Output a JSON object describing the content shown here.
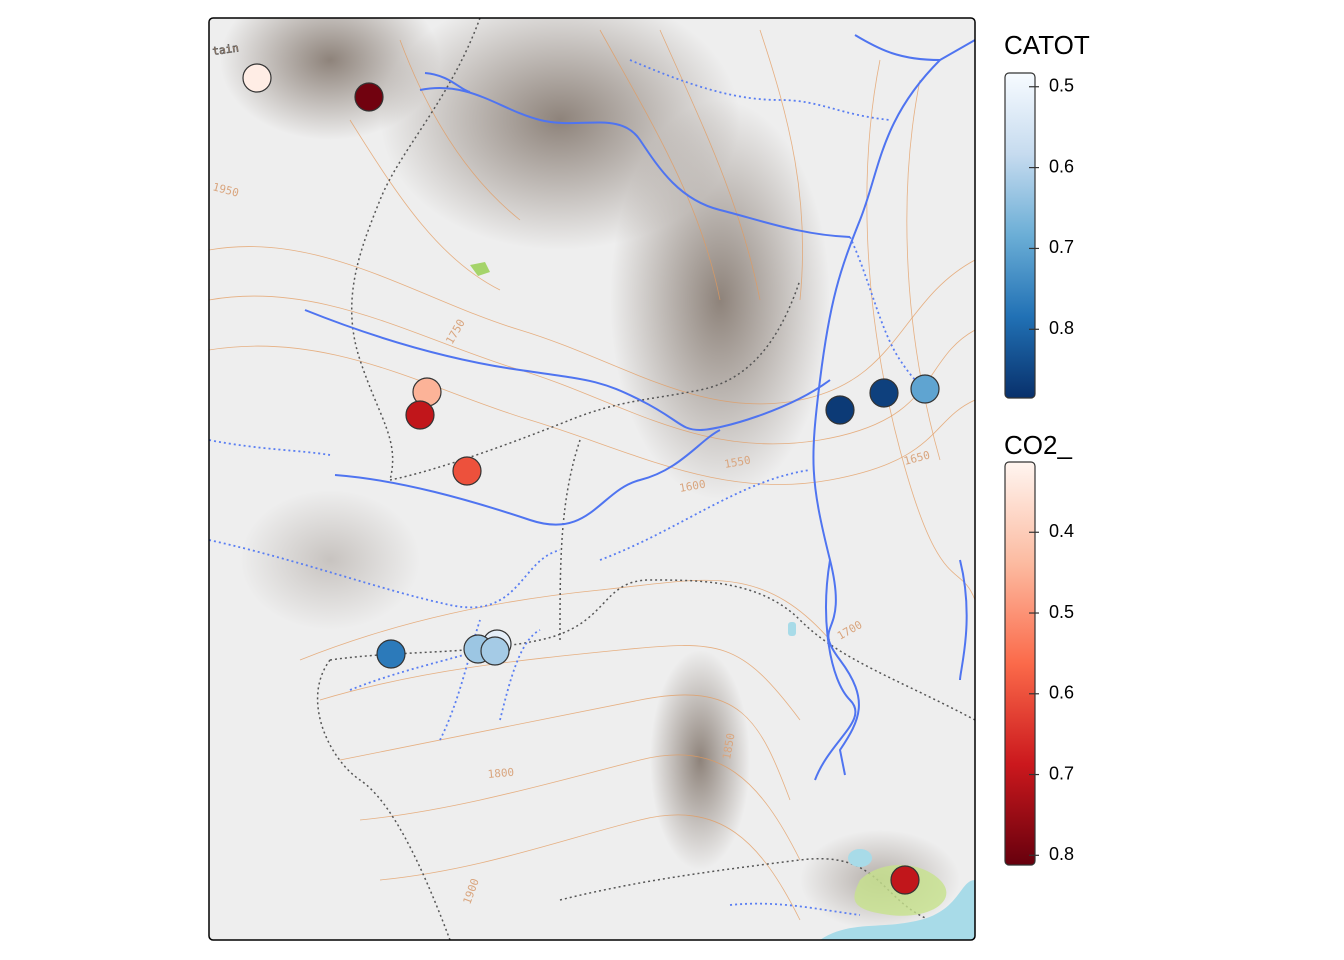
{
  "map": {
    "labels": [
      "tain",
      "1750",
      "1950",
      "1600",
      "1550",
      "1650",
      "1850",
      "1800",
      "1900",
      "1700"
    ]
  },
  "legends": [
    {
      "title": "CATOT",
      "lim": [
        0.483,
        0.885
      ],
      "ticks": [
        0.5,
        0.6,
        0.7,
        0.8
      ],
      "colors": [
        "#f7fbff",
        "#c6dbef",
        "#6baed6",
        "#2171b5",
        "#08306b"
      ],
      "values": [
        0.87,
        0.86,
        0.7,
        0.77,
        0.52,
        0.63,
        0.62
      ]
    },
    {
      "title": "CO2_",
      "lim": [
        0.313,
        0.812
      ],
      "ticks": [
        0.4,
        0.5,
        0.6,
        0.7,
        0.8
      ],
      "colors": [
        "#fff5f0",
        "#fcbba1",
        "#fb6a4a",
        "#cb181d",
        "#67000d"
      ],
      "values": [
        0.33,
        0.8,
        0.45,
        0.7,
        0.6,
        0.7
      ]
    }
  ]
}
